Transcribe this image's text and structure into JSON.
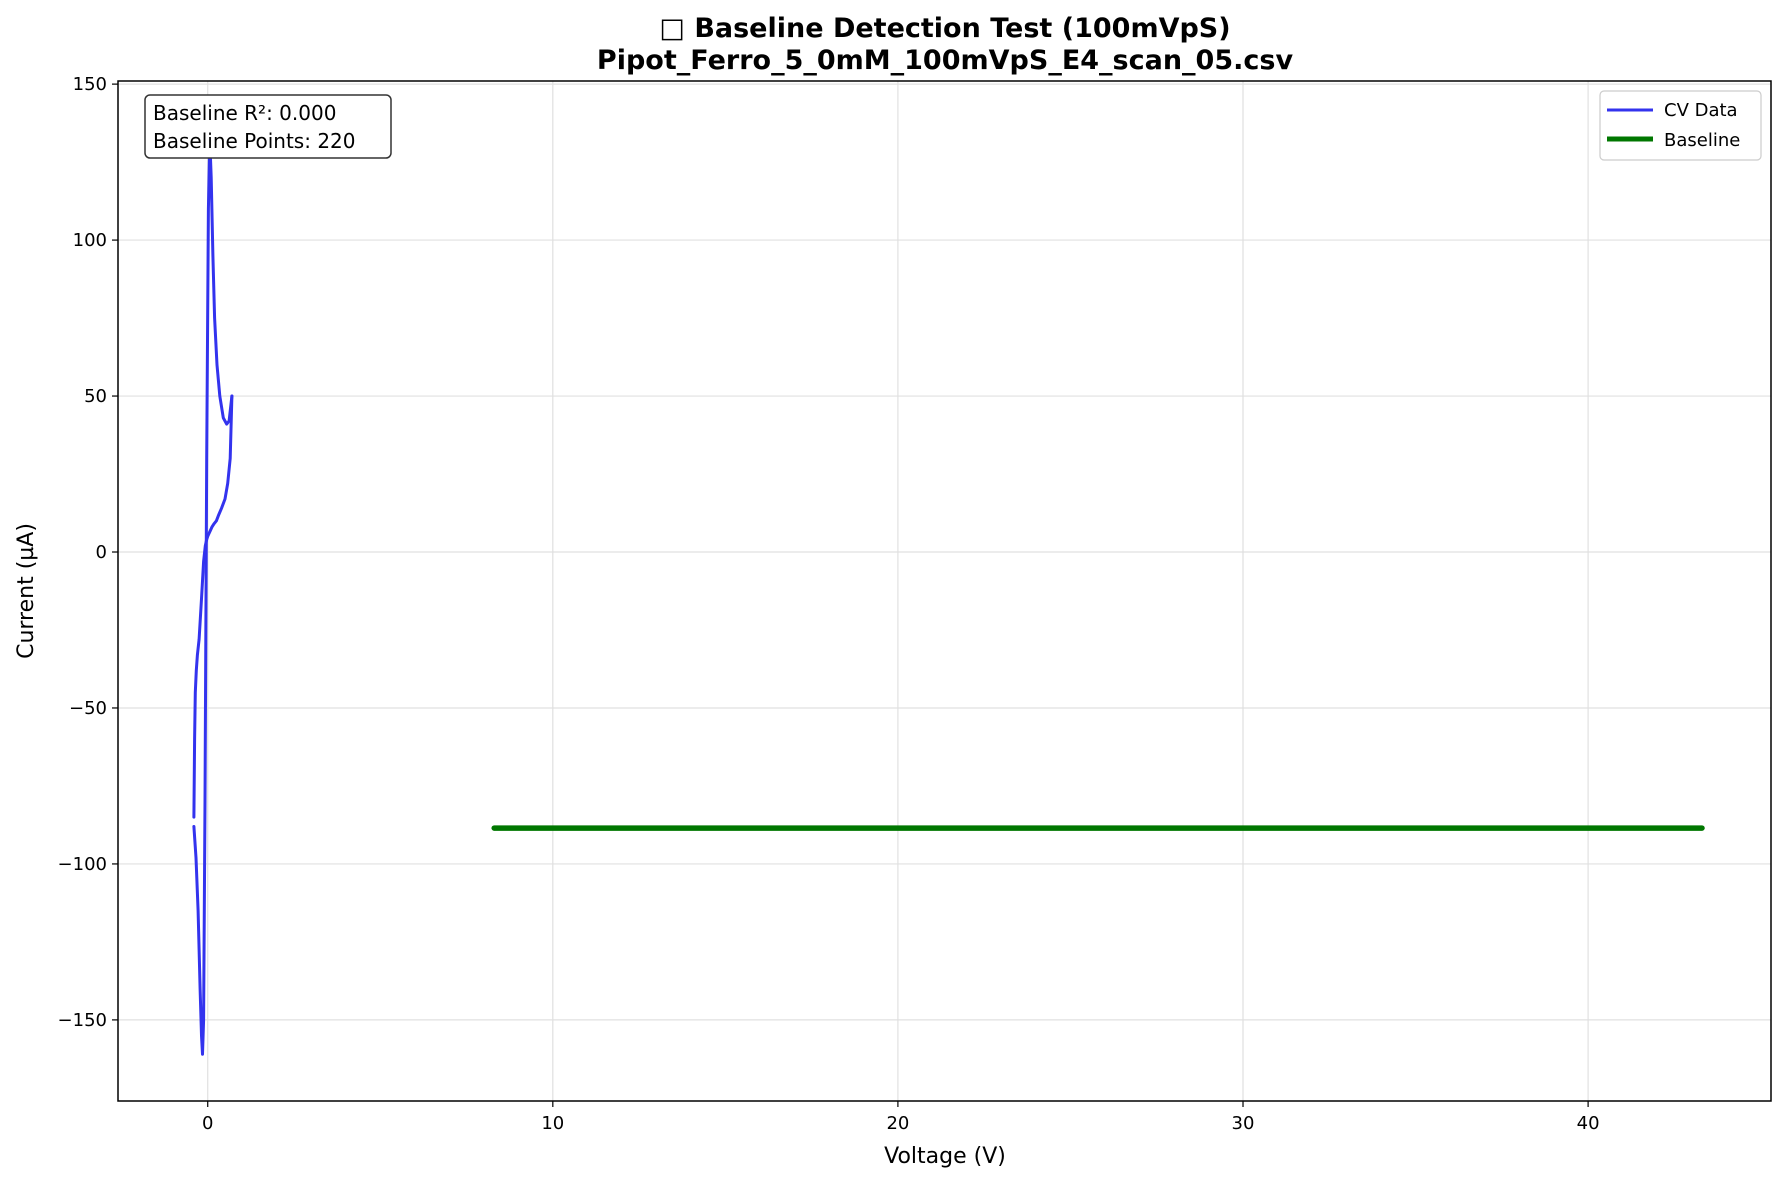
{
  "chart_data": {
    "type": "line",
    "title": "□ Baseline Detection Test (100mVpS)",
    "subtitle": "Pipot_Ferro_5_0mM_100mVpS_E4_scan_05.csv",
    "xlabel": "Voltage (V)",
    "ylabel": "Current (µA)",
    "xlim": [
      -2.6,
      45.3
    ],
    "ylim": [
      -176,
      151
    ],
    "x_ticks": [
      0,
      10,
      20,
      30,
      40
    ],
    "x_tick_labels": [
      "0",
      "10",
      "20",
      "30",
      "40"
    ],
    "y_ticks": [
      -150,
      -100,
      -50,
      0,
      50,
      100,
      150
    ],
    "y_tick_labels": [
      "−150",
      "−100",
      "−50",
      "0",
      "50",
      "100",
      "150"
    ],
    "grid": true,
    "legend_position": "top-right",
    "annotation": {
      "position": "top-left",
      "lines": [
        "Baseline R²: 0.000",
        "Baseline Points: 220"
      ]
    },
    "series": [
      {
        "name": "CV Data",
        "color": "#3333ee",
        "segments": [
          {
            "x": [
              -0.4,
              -0.38,
              -0.36,
              -0.33,
              -0.3,
              -0.25,
              -0.18,
              -0.12,
              -0.07,
              -0.03,
              0.0,
              0.04,
              0.08,
              0.12,
              0.18,
              0.25,
              0.32,
              0.4,
              0.5,
              0.58,
              0.65,
              0.7
            ],
            "y": [
              -85,
              -60,
              -45,
              -38,
              -33,
              -28,
              -15,
              -3,
              2,
              4,
              5,
              6,
              7,
              8,
              9,
              10,
              12,
              14,
              17,
              22,
              30,
              50
            ]
          },
          {
            "x": [
              -0.4,
              -0.34,
              -0.28,
              -0.22,
              -0.18,
              -0.15,
              -0.12,
              -0.08,
              -0.03,
              0.02,
              0.06,
              0.1,
              0.15,
              0.2,
              0.27,
              0.35,
              0.45,
              0.55,
              0.62,
              0.7
            ],
            "y": [
              -88,
              -98,
              -115,
              -140,
              -155,
              -161,
              -150,
              -80,
              30,
              110,
              132,
              120,
              95,
              75,
              60,
              50,
              43,
              41,
              42,
              50
            ]
          }
        ]
      },
      {
        "name": "Baseline",
        "color": "#007700",
        "segments": [
          {
            "x": [
              8.3,
              43.3
            ],
            "y": [
              -88.5,
              -88.5
            ]
          }
        ]
      }
    ]
  }
}
